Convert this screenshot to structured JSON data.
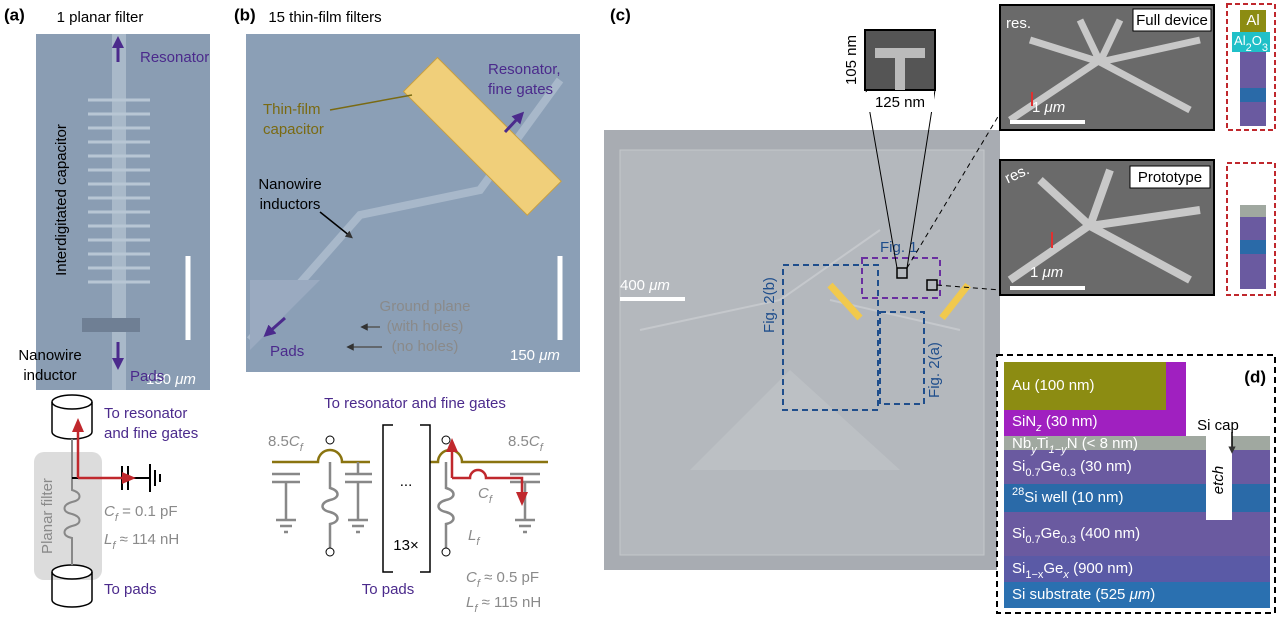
{
  "panel_a": {
    "label": "(a)",
    "title": "1 planar filter",
    "resonator": "Resonator",
    "capacitor": "Interdigitated capacitor",
    "scale": [
      "150 ",
      [
        "μm",
        "i"
      ]
    ],
    "inductor": [
      "Nanowire",
      "inductor"
    ],
    "pads": "Pads",
    "circuit": {
      "to_resonator": [
        "To resonator",
        "and fine gates"
      ],
      "box": "Planar filter",
      "cf": [
        [
          "C",
          "i"
        ],
        [
          "f",
          "isub"
        ],
        " = 0.1 pF"
      ],
      "lf": [
        [
          "L",
          "i"
        ],
        [
          "f",
          "isub"
        ],
        " ≈ 114 nH"
      ],
      "to_pads": "To pads"
    }
  },
  "panel_b": {
    "label": "(b)",
    "title": "15 thin-film filters",
    "capacitor": [
      "Thin-film",
      "capacitor"
    ],
    "resonator": [
      "Resonator,",
      "fine gates"
    ],
    "inductors": [
      "Nanowire",
      "inductors"
    ],
    "ground": [
      "Ground plane",
      "(with holes)",
      "(no holes)"
    ],
    "pads": "Pads",
    "scale": [
      "150 ",
      [
        "μm",
        "i"
      ]
    ],
    "circuit": {
      "to_resonator": "To resonator and fine gates",
      "cap_left": [
        "8.5",
        [
          "C",
          "i"
        ],
        [
          "f",
          "isub"
        ]
      ],
      "cap_right": [
        "8.5",
        [
          "C",
          "i"
        ],
        [
          "f",
          "isub"
        ]
      ],
      "dots": "...",
      "repeat": "13×",
      "cf": [
        [
          "C",
          "i"
        ],
        [
          "f",
          "isub"
        ]
      ],
      "lf": [
        [
          "L",
          "i"
        ],
        [
          "f",
          "isub"
        ]
      ],
      "to_pads": "To pads",
      "cf_value": [
        [
          "C",
          "i"
        ],
        [
          "f",
          "isub"
        ],
        " ≈ 0.5 pF"
      ],
      "lf_value": [
        [
          "L",
          "i"
        ],
        [
          "f",
          "isub"
        ],
        " ≈ 115 nH"
      ]
    }
  },
  "panel_c": {
    "label": "(c)",
    "height": "105 nm",
    "width": "125 nm",
    "full_device": "Full device",
    "prototype": "Prototype",
    "al": "Al",
    "al2o3": [
      "Al",
      [
        "2",
        "sub"
      ],
      "O",
      [
        "3",
        "sub"
      ]
    ],
    "res_full": "res.",
    "res_proto": "res.",
    "scale_full": [
      "1 ",
      [
        "μm",
        "i"
      ]
    ],
    "scale_proto": [
      "1 ",
      [
        "μm",
        "i"
      ]
    ],
    "scale_chip": [
      "400 ",
      [
        "μm",
        "i"
      ]
    ],
    "fig1": "Fig. 1",
    "fig2b": "Fig. 2(b)",
    "fig2a": "Fig. 2(a)"
  },
  "panel_d": {
    "label": "(d)",
    "au": "Au (100 nm)",
    "sin": [
      "SiN",
      [
        "z",
        "isub"
      ],
      " (30 nm)"
    ],
    "nbtin": [
      "Nb",
      [
        "y",
        "isub"
      ],
      "Ti",
      [
        "1−y",
        "isub"
      ],
      "N (< 8 nm)"
    ],
    "si_cap": "Si cap",
    "sige_top": [
      "Si",
      [
        "0.7",
        "sub"
      ],
      "Ge",
      [
        "0.3",
        "sub"
      ],
      " (30 nm)"
    ],
    "well": [
      [
        "28",
        "sup"
      ],
      "Si well (10 nm)"
    ],
    "etch": "etch",
    "sige_mid": [
      "Si",
      [
        "0.7",
        "sub"
      ],
      "Ge",
      [
        "0.3",
        "sub"
      ],
      " (400 nm)"
    ],
    "sige_buffer": [
      "Si",
      [
        "1−x",
        "sub"
      ],
      "Ge",
      [
        "x",
        "isub"
      ],
      " (900 nm)"
    ],
    "substrate": [
      "Si substrate (525 ",
      [
        "μm",
        "i"
      ],
      ")"
    ]
  }
}
